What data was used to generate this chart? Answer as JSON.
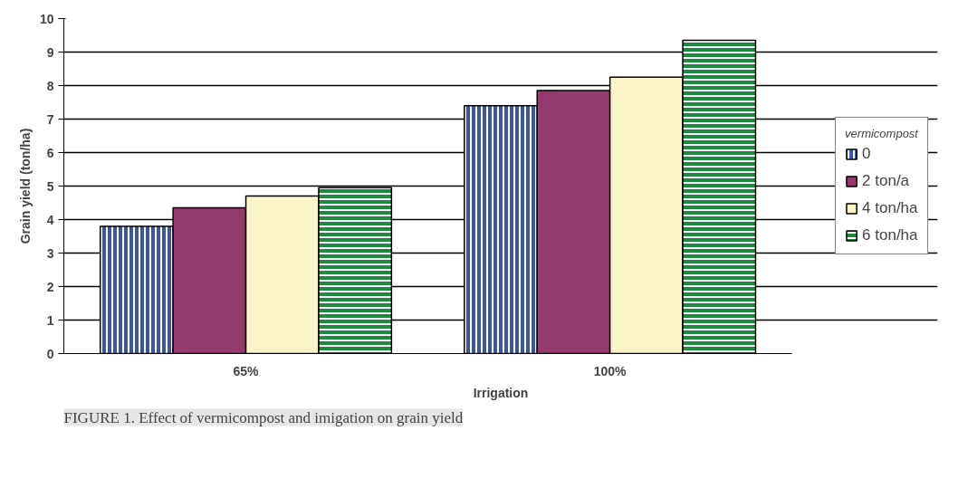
{
  "chart_data": {
    "type": "bar",
    "xlabel": "Irrigation",
    "ylabel": "Grain yield (ton/ha)",
    "legend_title": "vermicompost",
    "categories": [
      "65%",
      "100%"
    ],
    "series": [
      {
        "name": "0",
        "color": "#3a55a8",
        "values": [
          3.8,
          7.4
        ]
      },
      {
        "name": "2 ton/a",
        "color": "#943a6c",
        "values": [
          4.35,
          7.85
        ]
      },
      {
        "name": "4 ton/ha",
        "color": "#faf5c8",
        "values": [
          4.7,
          8.25
        ]
      },
      {
        "name": "6 ton/ha",
        "color": "#1e8a3e",
        "values": [
          4.95,
          9.35
        ]
      }
    ],
    "ylim": [
      0,
      10
    ],
    "yticks": [
      0,
      1,
      2,
      3,
      4,
      5,
      6,
      7,
      8,
      9,
      10
    ],
    "grid": "y",
    "legend": "right",
    "annotations": [
      "FIGURE 1. Effect of vermicompost and imigation on grain yield"
    ]
  }
}
